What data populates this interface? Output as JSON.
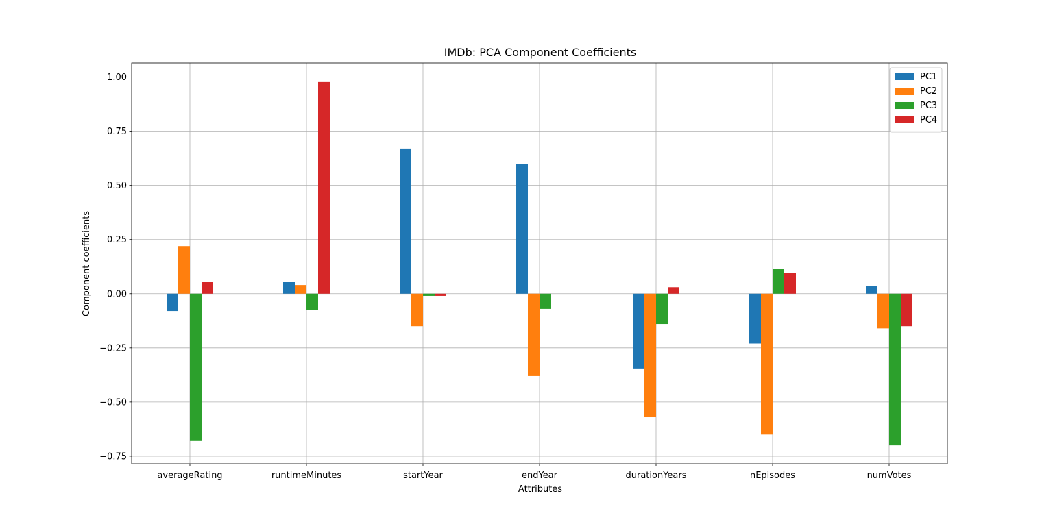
{
  "chart_data": {
    "type": "bar",
    "title": "IMDb: PCA Component Coefficients",
    "xlabel": "Attributes",
    "ylabel": "Component coefficients",
    "categories": [
      "averageRating",
      "runtimeMinutes",
      "startYear",
      "endYear",
      "durationYears",
      "nEpisodes",
      "numVotes"
    ],
    "ylim": [
      -0.785,
      1.065
    ],
    "yticks": [
      1.0,
      0.75,
      0.5,
      0.25,
      0.0,
      -0.25,
      -0.5,
      -0.75
    ],
    "ytick_labels": [
      "1.00",
      "0.75",
      "0.50",
      "0.25",
      "0.00",
      "−0.25",
      "−0.50",
      "−0.75"
    ],
    "grid": true,
    "legend_position": "top-right",
    "series": [
      {
        "name": "PC1",
        "color": "#1f77b4",
        "values": [
          -0.08,
          0.055,
          0.67,
          0.6,
          -0.345,
          -0.23,
          0.035
        ]
      },
      {
        "name": "PC2",
        "color": "#ff7f0e",
        "values": [
          0.22,
          0.04,
          -0.15,
          -0.38,
          -0.57,
          -0.65,
          -0.16
        ]
      },
      {
        "name": "PC3",
        "color": "#2ca02c",
        "values": [
          -0.68,
          -0.075,
          -0.01,
          -0.07,
          -0.14,
          0.115,
          -0.7
        ]
      },
      {
        "name": "PC4",
        "color": "#d62728",
        "values": [
          0.055,
          0.98,
          -0.01,
          0.0,
          0.03,
          0.095,
          -0.15
        ]
      }
    ]
  }
}
